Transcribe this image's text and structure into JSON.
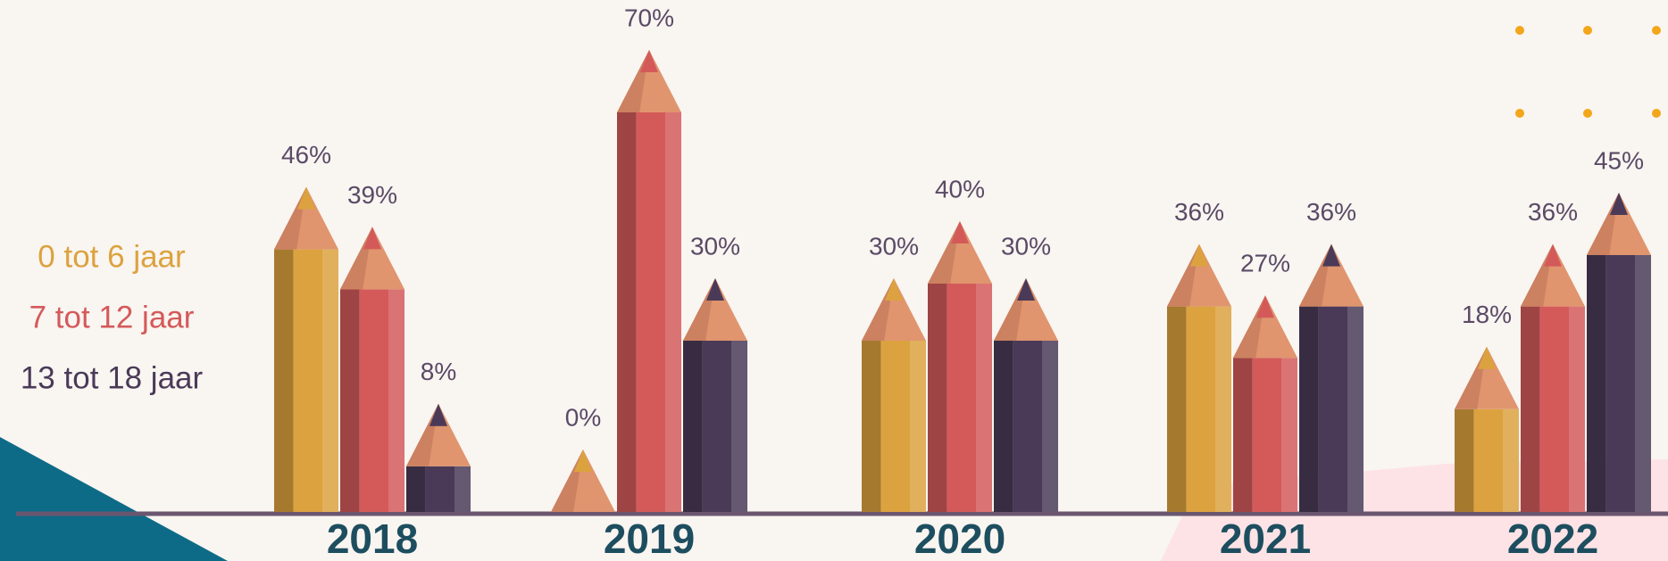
{
  "chart_data": {
    "type": "pencil-bar",
    "categories": [
      "2018",
      "2019",
      "2020",
      "2021",
      "2022"
    ],
    "series": [
      {
        "name": "0 tot 6 jaar",
        "color": "#dca23f",
        "values": [
          46,
          0,
          30,
          36,
          18
        ],
        "value_labels": [
          "46%",
          "0%",
          "30%",
          "36%",
          "18%"
        ]
      },
      {
        "name": "7 tot 12 jaar",
        "color": "#d45a5a",
        "values": [
          39,
          70,
          40,
          27,
          36
        ],
        "value_labels": [
          "39%",
          "70%",
          "40%",
          "27%",
          "36%"
        ]
      },
      {
        "name": "13 tot 18 jaar",
        "color": "#4a3a58",
        "values": [
          8,
          30,
          30,
          36,
          45
        ],
        "value_labels": [
          "8%",
          "30%",
          "30%",
          "36%",
          "45%"
        ]
      }
    ]
  }
}
